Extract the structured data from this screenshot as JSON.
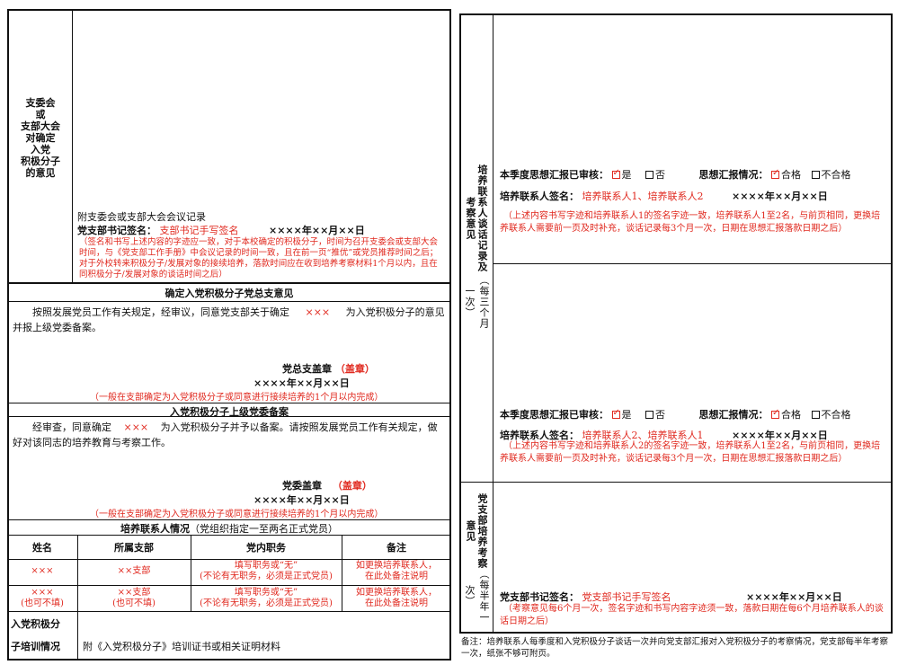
{
  "left": {
    "committee": {
      "label": "支委会\n或\n支部大会\n对确定\n入党\n积极分子\n的意见",
      "attach": "附支委会或支部大会会议记录",
      "sign_label": "党支部书记签名：",
      "sign_value": "支部书记手写签名",
      "date": "××××年××月××日",
      "note": "（签名和书写上述内容的字迹应一致，对于本校确定的积极分子，时间为召开支委会或支部大会时间，与《党支部工作手册》中会议记录的时间一致，且在前一页“推优”或党员推荐时间之后；对于外校转来积极分子/发展对象的接续培养，落款时间应在收到培养考察材料1个月以内，且在同积极分子/发展对象的谈话时间之后）"
    },
    "general": {
      "title": "确定入党积极分子党总支意见",
      "body_1": "按照发展党员工作有关规定，经审议，同意党支部关于确定",
      "body_name": "×××",
      "body_2": "为入党积极分子的意见并报上级党委备案。",
      "stamp_label": "党总支盖章",
      "stamp_red": "（盖章）",
      "date": "××××年××月××日",
      "note": "（一般在支部确定为入党积极分子或同意进行接续培养的1个月以内完成）"
    },
    "party": {
      "title": "入党积极分子上级党委备案",
      "body_1": "经审查，同意确定",
      "body_name": "×××",
      "body_2": "为入党积极分子并予以备案。请按照发展党员工作有关规定，做好对该同志的培养教育与考察工作。",
      "stamp_label": "党委盖章",
      "stamp_red": "（盖章）",
      "date": "××××年××月××日",
      "note": "（一般在支部确定为入党积极分子或同意进行接续培养的1个月以内完成）"
    },
    "contacts": {
      "title": "培养联系人情况",
      "title_note": "（党组织指定一至两名正式党员）",
      "headers": [
        "姓名",
        "所属支部",
        "党内职务",
        "备注"
      ],
      "rows": [
        {
          "name": "×××",
          "name2": "",
          "branch": "××支部",
          "branch2": "",
          "duty": "填写职务或“无”",
          "duty2": "(不论有无职务，必须是正式党员)",
          "remark": "如更换培养联系人，",
          "remark2": "在此处备注说明"
        },
        {
          "name": "×××",
          "name2": "(也可不填)",
          "branch": "××支部",
          "branch2": "(也可不填)",
          "duty": "填写职务或“无”",
          "duty2": "(不论有无职务，必须是正式党员)",
          "remark": "如更换培养联系人，",
          "remark2": "在此处备注说明"
        }
      ]
    },
    "training": {
      "label_1": "入党积极分",
      "label_2": "子培训情况",
      "value": "附《入党积极分子》培训证书或相关证明材料"
    }
  },
  "right": {
    "talk_label": "培养联系人谈话记录及考察意见",
    "talk_sub": "（每三个月一次）",
    "block1": {
      "review_label": "本季度思想汇报已审核：",
      "yes": "是",
      "no": "否",
      "status_label": "思想汇报情况：",
      "pass": "合格",
      "fail": "不合格",
      "sign_label": "培养联系人签名：",
      "sign_value": "培养联系人1、培养联系人2",
      "date": "××××年××月××日",
      "note": "（上述内容书写字迹和培养联系人1的签名字迹一致，培养联系人1至2名，与前页相同，更换培养联系人需要前一页及时补充，谈话记录每3个月一次，日期在思想汇报落款日期之后）"
    },
    "block2": {
      "review_label": "本季度思想汇报已审核：",
      "yes": "是",
      "no": "否",
      "status_label": "思想汇报情况：",
      "pass": "合格",
      "fail": "不合格",
      "sign_label": "培养联系人签名：",
      "sign_value": "培养联系人2、培养联系人1",
      "date": "××××年××月××日",
      "note": "（上述内容书写字迹和培养联系人2的签名字迹一致，培养联系人1至2名，与前页相同，更换培养联系人需要前一页及时补充，谈话记录每3个月一次，日期在思想汇报落款日期之后）"
    },
    "branch": {
      "label": "党支部培养考察意见",
      "sub": "（每半年一次）",
      "sign_label": "党支部书记签名：",
      "sign_value": "党支部书记手写签名",
      "date": "××××年××月××日",
      "note": "（考察意见每6个月一次，签名字迹和书写内容字迹须一致，落款日期在每6个月培养联系人的谈话日期之后）"
    },
    "footnote": "备注：培养联系人每季度和入党积极分子谈话一次并向党支部汇报对入党积极分子的考察情况，党支部每半年考察一次，纸张不够可附页。"
  }
}
